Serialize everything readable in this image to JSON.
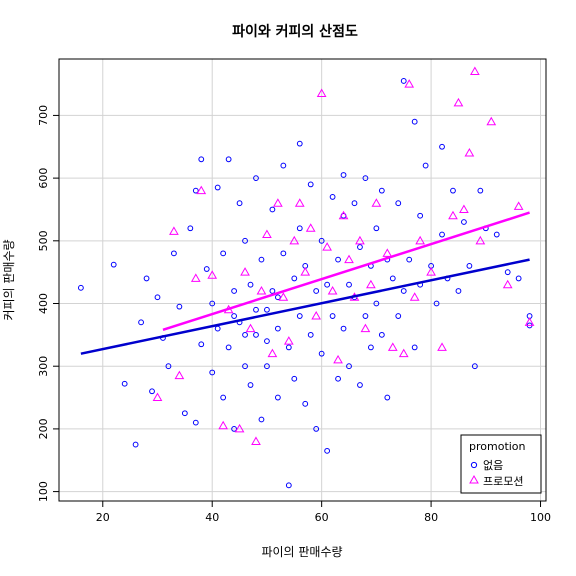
{
  "chart_data": {
    "type": "scatter",
    "title": "파이와 커피의 산점도",
    "xlabel": "파이의 판매수량",
    "ylabel": "커피의 판매수량",
    "xlim": [
      12,
      101
    ],
    "ylim": [
      85,
      790
    ],
    "x_ticks": [
      20,
      40,
      60,
      80,
      100
    ],
    "y_ticks": [
      100,
      200,
      300,
      400,
      500,
      600,
      700
    ],
    "grid": true,
    "legend": {
      "title": "promotion",
      "position": "bottom-right",
      "entries": [
        {
          "label": "없음",
          "marker": "circle",
          "color": "#0000ff"
        },
        {
          "label": "프로모션",
          "marker": "triangle",
          "color": "#ff00ff"
        }
      ]
    },
    "series": [
      {
        "name": "없음",
        "marker": "circle",
        "color": "#0000ff",
        "points": [
          [
            16,
            425
          ],
          [
            22,
            462
          ],
          [
            24,
            272
          ],
          [
            26,
            175
          ],
          [
            27,
            370
          ],
          [
            28,
            440
          ],
          [
            29,
            260
          ],
          [
            30,
            410
          ],
          [
            31,
            345
          ],
          [
            32,
            300
          ],
          [
            33,
            480
          ],
          [
            34,
            395
          ],
          [
            35,
            225
          ],
          [
            36,
            520
          ],
          [
            37,
            580
          ],
          [
            37,
            210
          ],
          [
            38,
            335
          ],
          [
            38,
            630
          ],
          [
            39,
            455
          ],
          [
            40,
            290
          ],
          [
            40,
            400
          ],
          [
            41,
            585
          ],
          [
            41,
            360
          ],
          [
            42,
            250
          ],
          [
            42,
            480
          ],
          [
            43,
            630
          ],
          [
            43,
            330
          ],
          [
            44,
            420
          ],
          [
            44,
            200
          ],
          [
            45,
            560
          ],
          [
            45,
            370
          ],
          [
            46,
            300
          ],
          [
            46,
            500
          ],
          [
            47,
            270
          ],
          [
            47,
            430
          ],
          [
            48,
            600
          ],
          [
            48,
            350
          ],
          [
            49,
            215
          ],
          [
            49,
            470
          ],
          [
            50,
            390
          ],
          [
            50,
            300
          ],
          [
            51,
            550
          ],
          [
            51,
            420
          ],
          [
            52,
            250
          ],
          [
            52,
            360
          ],
          [
            53,
            620
          ],
          [
            53,
            480
          ],
          [
            54,
            330
          ],
          [
            54,
            110
          ],
          [
            55,
            440
          ],
          [
            55,
            280
          ],
          [
            56,
            520
          ],
          [
            56,
            380
          ],
          [
            57,
            240
          ],
          [
            57,
            460
          ],
          [
            58,
            590
          ],
          [
            58,
            350
          ],
          [
            59,
            420
          ],
          [
            59,
            200
          ],
          [
            60,
            500
          ],
          [
            60,
            320
          ],
          [
            61,
            165
          ],
          [
            61,
            430
          ],
          [
            62,
            570
          ],
          [
            62,
            380
          ],
          [
            63,
            280
          ],
          [
            63,
            470
          ],
          [
            64,
            540
          ],
          [
            64,
            360
          ],
          [
            65,
            430
          ],
          [
            65,
            300
          ],
          [
            66,
            560
          ],
          [
            66,
            410
          ],
          [
            67,
            270
          ],
          [
            67,
            490
          ],
          [
            68,
            380
          ],
          [
            68,
            600
          ],
          [
            69,
            330
          ],
          [
            69,
            460
          ],
          [
            70,
            520
          ],
          [
            70,
            400
          ],
          [
            71,
            580
          ],
          [
            71,
            350
          ],
          [
            72,
            250
          ],
          [
            72,
            470
          ],
          [
            73,
            440
          ],
          [
            74,
            560
          ],
          [
            74,
            380
          ],
          [
            75,
            420
          ],
          [
            76,
            470
          ],
          [
            77,
            690
          ],
          [
            77,
            330
          ],
          [
            78,
            540
          ],
          [
            78,
            430
          ],
          [
            79,
            620
          ],
          [
            80,
            460
          ],
          [
            81,
            400
          ],
          [
            82,
            650
          ],
          [
            82,
            510
          ],
          [
            83,
            440
          ],
          [
            84,
            580
          ],
          [
            85,
            420
          ],
          [
            86,
            530
          ],
          [
            87,
            460
          ],
          [
            88,
            300
          ],
          [
            89,
            580
          ],
          [
            90,
            520
          ],
          [
            92,
            510
          ],
          [
            94,
            450
          ],
          [
            96,
            440
          ],
          [
            98,
            380
          ],
          [
            98,
            365
          ],
          [
            75,
            755
          ],
          [
            64,
            605
          ],
          [
            56,
            655
          ],
          [
            44,
            380
          ],
          [
            46,
            350
          ],
          [
            48,
            390
          ],
          [
            50,
            340
          ],
          [
            52,
            410
          ]
        ]
      },
      {
        "name": "프로모션",
        "marker": "triangle",
        "color": "#ff00ff",
        "points": [
          [
            30,
            250
          ],
          [
            33,
            515
          ],
          [
            34,
            285
          ],
          [
            37,
            440
          ],
          [
            38,
            580
          ],
          [
            40,
            445
          ],
          [
            42,
            205
          ],
          [
            43,
            390
          ],
          [
            45,
            200
          ],
          [
            46,
            450
          ],
          [
            47,
            360
          ],
          [
            48,
            180
          ],
          [
            49,
            420
          ],
          [
            50,
            510
          ],
          [
            51,
            320
          ],
          [
            52,
            560
          ],
          [
            53,
            410
          ],
          [
            54,
            340
          ],
          [
            55,
            500
          ],
          [
            56,
            560
          ],
          [
            57,
            450
          ],
          [
            58,
            520
          ],
          [
            59,
            380
          ],
          [
            60,
            735
          ],
          [
            61,
            490
          ],
          [
            62,
            420
          ],
          [
            63,
            310
          ],
          [
            64,
            540
          ],
          [
            65,
            470
          ],
          [
            66,
            410
          ],
          [
            67,
            500
          ],
          [
            68,
            360
          ],
          [
            69,
            430
          ],
          [
            70,
            560
          ],
          [
            72,
            480
          ],
          [
            73,
            330
          ],
          [
            75,
            320
          ],
          [
            76,
            750
          ],
          [
            77,
            410
          ],
          [
            78,
            500
          ],
          [
            80,
            450
          ],
          [
            82,
            330
          ],
          [
            84,
            540
          ],
          [
            85,
            720
          ],
          [
            86,
            550
          ],
          [
            87,
            640
          ],
          [
            88,
            770
          ],
          [
            89,
            500
          ],
          [
            91,
            690
          ],
          [
            94,
            430
          ],
          [
            96,
            555
          ],
          [
            98,
            370
          ]
        ]
      }
    ],
    "trend_lines": [
      {
        "series": "없음",
        "color": "#0000cd",
        "x": [
          16,
          98
        ],
        "y": [
          320,
          470
        ]
      },
      {
        "series": "프로모션",
        "color": "#ff00ff",
        "x": [
          31,
          98
        ],
        "y": [
          358,
          545
        ]
      }
    ]
  }
}
